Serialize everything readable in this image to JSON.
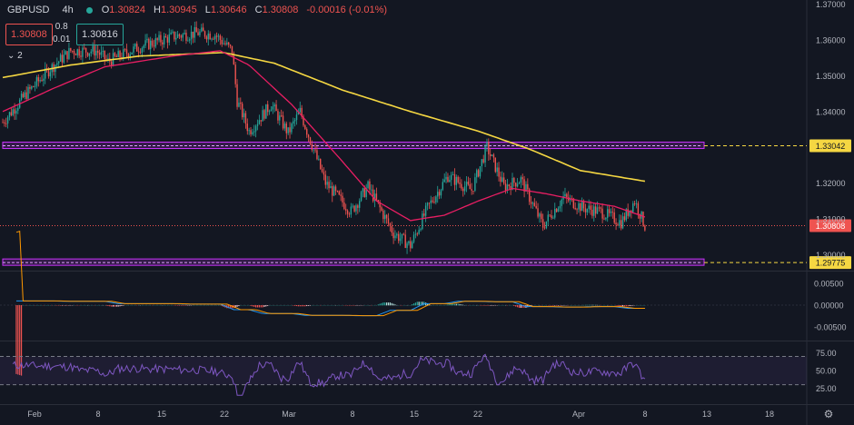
{
  "header": {
    "symbol": "GBPUSD",
    "timeframe": "4h",
    "ohlc": [
      {
        "k": "O",
        "v": "1.30824"
      },
      {
        "k": "H",
        "v": "1.30945"
      },
      {
        "k": "L",
        "v": "1.30646"
      },
      {
        "k": "C",
        "v": "1.30808"
      }
    ],
    "change": "-0.00016 (-0.01%)",
    "sell_price": "1.30808",
    "buy_price": "1.30816",
    "spread_top": "0.8",
    "spread_bottom": "0.01",
    "indicators_toggle": "2"
  },
  "colors": {
    "bg": "#131722",
    "up": "#26a69a",
    "down": "#ef5350",
    "ma_fast": "#e91e63",
    "ma_slow": "#f5d742",
    "zone": "#cc33ff",
    "level": "#f5d742",
    "rsi": "#7e57c2",
    "macd": "#2196f3",
    "signal": "#ff9800"
  },
  "chart_data": [
    {
      "type": "candlestick",
      "symbol": "GBPUSD",
      "interval": "4h",
      "x_ticks": [
        "Feb",
        "8",
        "15",
        "22",
        "Mar",
        "8",
        "15",
        "22",
        "Apr",
        "8",
        "13",
        "18"
      ],
      "y_ticks": [
        "1.37000",
        "1.36000",
        "1.35000",
        "1.34000",
        "1.32000",
        "1.31000",
        "1.30000"
      ],
      "ylim": [
        1.2955,
        1.3712
      ],
      "anchor_path": [
        [
          0,
          1.337
        ],
        [
          14,
          1.345
        ],
        [
          28,
          1.352
        ],
        [
          40,
          1.357
        ],
        [
          55,
          1.357
        ],
        [
          62,
          1.354
        ],
        [
          80,
          1.358
        ],
        [
          100,
          1.361
        ],
        [
          115,
          1.362
        ],
        [
          125,
          1.3615
        ],
        [
          135,
          1.357
        ],
        [
          138,
          1.343
        ],
        [
          145,
          1.3345
        ],
        [
          158,
          1.342
        ],
        [
          168,
          1.334
        ],
        [
          175,
          1.34
        ],
        [
          190,
          1.32
        ],
        [
          205,
          1.312
        ],
        [
          215,
          1.319
        ],
        [
          230,
          1.306
        ],
        [
          240,
          1.3025
        ],
        [
          250,
          1.313
        ],
        [
          262,
          1.322
        ],
        [
          276,
          1.318
        ],
        [
          285,
          1.33
        ],
        [
          295,
          1.319
        ],
        [
          305,
          1.321
        ],
        [
          318,
          1.308
        ],
        [
          330,
          1.316
        ],
        [
          342,
          1.313
        ],
        [
          352,
          1.312
        ],
        [
          364,
          1.309
        ],
        [
          372,
          1.315
        ],
        [
          378,
          1.308
        ]
      ],
      "moving_average_fast_path": [
        [
          0,
          1.34
        ],
        [
          30,
          1.3465
        ],
        [
          60,
          1.3525
        ],
        [
          100,
          1.3555
        ],
        [
          128,
          1.357
        ],
        [
          145,
          1.353
        ],
        [
          170,
          1.342
        ],
        [
          200,
          1.326
        ],
        [
          220,
          1.315
        ],
        [
          240,
          1.3095
        ],
        [
          260,
          1.311
        ],
        [
          280,
          1.315
        ],
        [
          300,
          1.3185
        ],
        [
          320,
          1.317
        ],
        [
          340,
          1.315
        ],
        [
          360,
          1.3135
        ],
        [
          378,
          1.3105
        ]
      ],
      "moving_average_slow_path": [
        [
          0,
          1.3495
        ],
        [
          40,
          1.353
        ],
        [
          80,
          1.3555
        ],
        [
          130,
          1.3565
        ],
        [
          160,
          1.3535
        ],
        [
          200,
          1.346
        ],
        [
          240,
          1.34
        ],
        [
          280,
          1.3345
        ],
        [
          310,
          1.3295
        ],
        [
          340,
          1.3235
        ],
        [
          378,
          1.3205
        ]
      ],
      "levels": [
        {
          "value": 1.33042,
          "label": "1.33042"
        },
        {
          "value": 1.29775,
          "label": "1.29775"
        }
      ],
      "current_price": {
        "value": 1.30808,
        "label": "1.30808"
      }
    },
    {
      "type": "histogram",
      "indicator": "MACD",
      "y_ticks": [
        "0.00500",
        "0.00000",
        "-0.00500"
      ],
      "ylim": [
        -0.0075,
        0.0075
      ]
    },
    {
      "type": "line",
      "indicator": "RSI",
      "y_ticks": [
        "75.00",
        "50.00",
        "25.00"
      ],
      "ylim": [
        5,
        90
      ],
      "bands": [
        70,
        30
      ]
    }
  ]
}
